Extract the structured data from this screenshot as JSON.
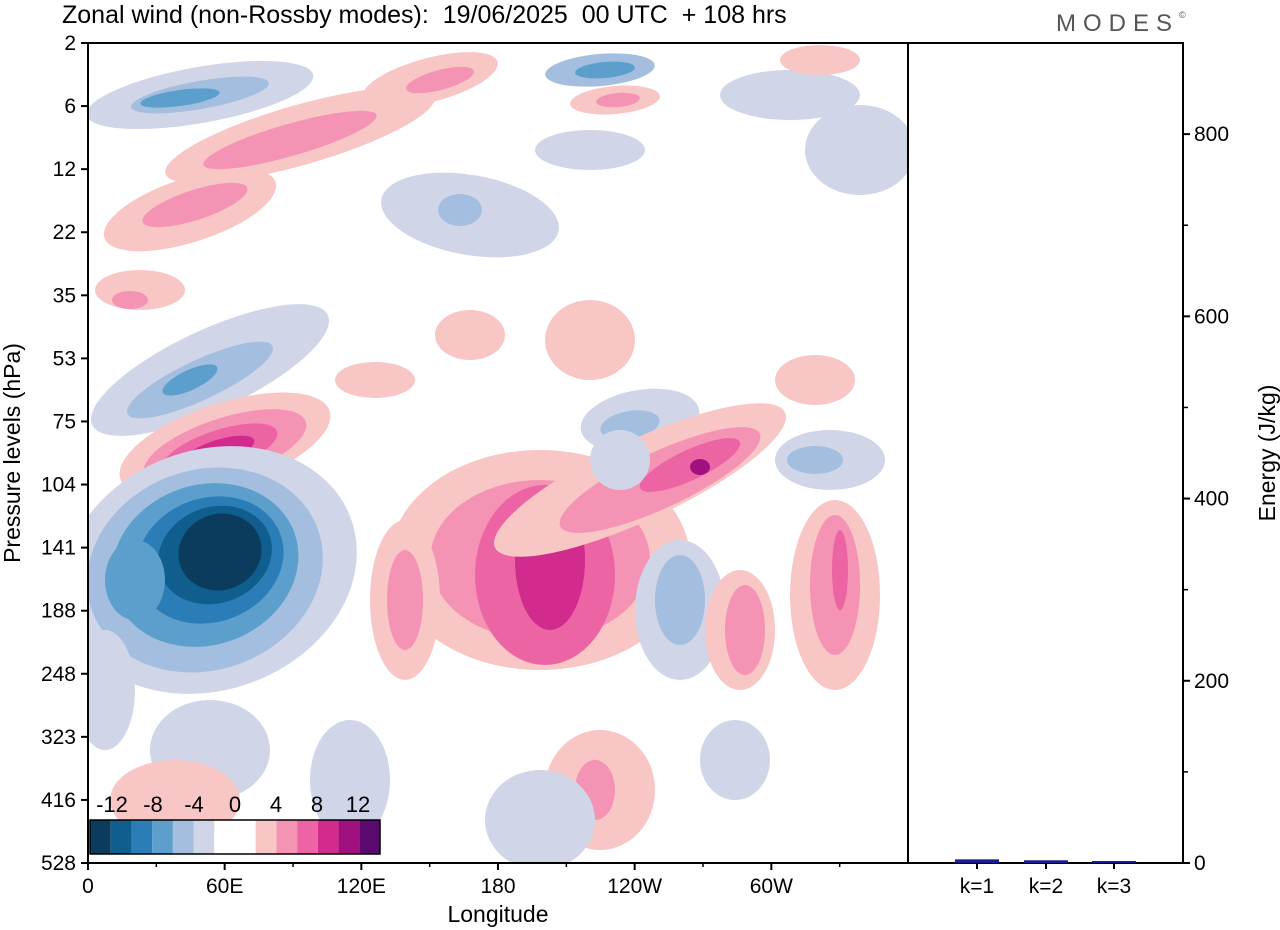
{
  "title": "Zonal wind (non-Rossby modes):  19/06/2025  00 UTC  + 108 hrs",
  "logo": "MODES",
  "logo_mark": "©",
  "colors": {
    "neg": [
      "#0b3c5d",
      "#0f5e8e",
      "#2a7db6",
      "#5d9fcc",
      "#a3bede",
      "#d0d6e8"
    ],
    "white": "#ffffff",
    "pos": [
      "#f9c6c6",
      "#f593b4",
      "#ec64a3",
      "#d22b8e",
      "#a0107f",
      "#5a0a6e"
    ],
    "bar": "#1b1b8f"
  },
  "chart_data": [
    {
      "type": "heatmap",
      "title": "Zonal wind (non-Rossby modes):  19/06/2025  00 UTC  + 108 hrs",
      "xlabel": "Longitude",
      "ylabel": "Pressure levels (hPa)",
      "x_ticks": [
        "0",
        "60E",
        "120E",
        "180",
        "120W",
        "60W"
      ],
      "x_tick_degrees": [
        0,
        60,
        120,
        180,
        240,
        300
      ],
      "xlim": [
        0,
        360
      ],
      "y_ticks": [
        "2",
        "6",
        "12",
        "22",
        "35",
        "53",
        "75",
        "104",
        "141",
        "188",
        "248",
        "323",
        "416",
        "528"
      ],
      "colorbar": {
        "tick_labels": [
          "-12",
          "-8",
          "-4",
          "0",
          "4",
          "8",
          "12"
        ],
        "levels": [
          -14,
          -12,
          -10,
          -8,
          -6,
          -4,
          -2,
          2,
          4,
          6,
          8,
          10,
          12,
          14
        ]
      },
      "features": [
        {
          "lon": 56,
          "level": 141,
          "value": -14
        },
        {
          "lon": 66,
          "level": 90,
          "value": 10
        },
        {
          "lon": 200,
          "level": 150,
          "value": 11
        },
        {
          "lon": 270,
          "level": 100,
          "value": 9
        },
        {
          "lon": 175,
          "level": 190,
          "value": 6
        },
        {
          "lon": 330,
          "level": 180,
          "value": 6
        },
        {
          "lon": 40,
          "level": 5,
          "value": -6
        },
        {
          "lon": 230,
          "level": 4,
          "value": -6
        }
      ]
    },
    {
      "type": "bar",
      "categories": [
        "k=1",
        "k=2",
        "k=3"
      ],
      "values": [
        4,
        3,
        2
      ],
      "ylabel": "Energy (J/kg)",
      "y_ticks": [
        "0",
        "200",
        "400",
        "600",
        "800"
      ],
      "ylim": [
        0,
        900
      ]
    }
  ]
}
